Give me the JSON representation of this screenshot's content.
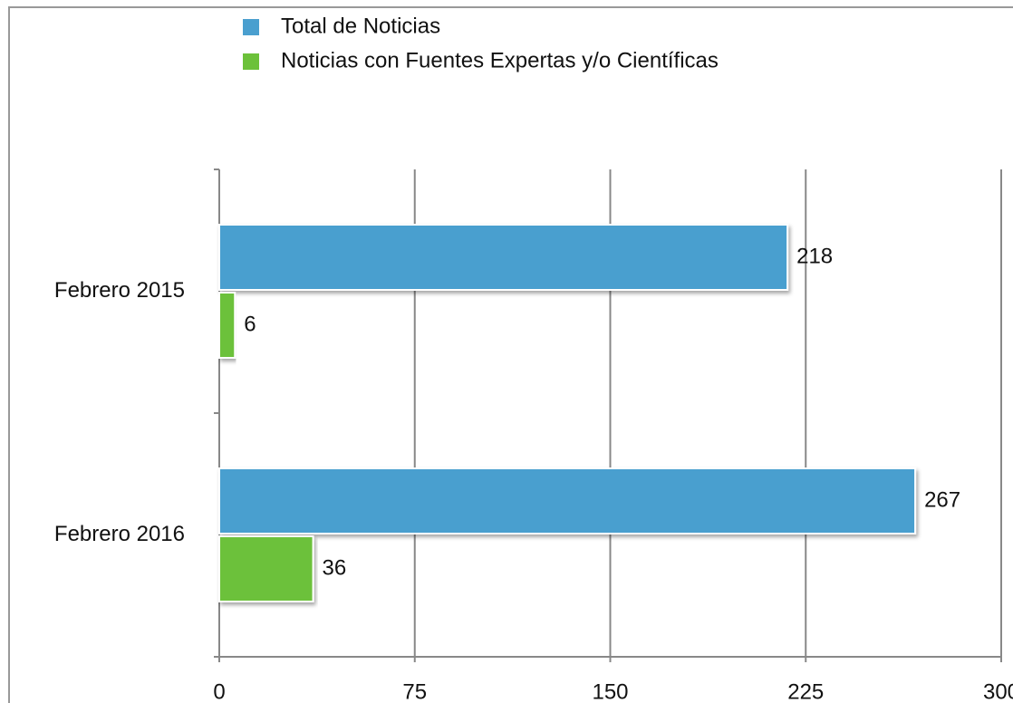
{
  "chart_data": {
    "type": "barh",
    "categories": [
      "Febrero 2015",
      "Febrero 2016"
    ],
    "series": [
      {
        "name": "Total de Noticias",
        "color": "#4a9fcf",
        "values": [
          218,
          267
        ]
      },
      {
        "name": "Noticias con Fuentes Expertas y/o Científicas",
        "color": "#6cc13a",
        "values": [
          6,
          36
        ]
      }
    ],
    "xlim": [
      0,
      300
    ],
    "xticks": [
      0,
      75,
      150,
      225,
      300
    ],
    "grid": true,
    "legend": "top"
  }
}
